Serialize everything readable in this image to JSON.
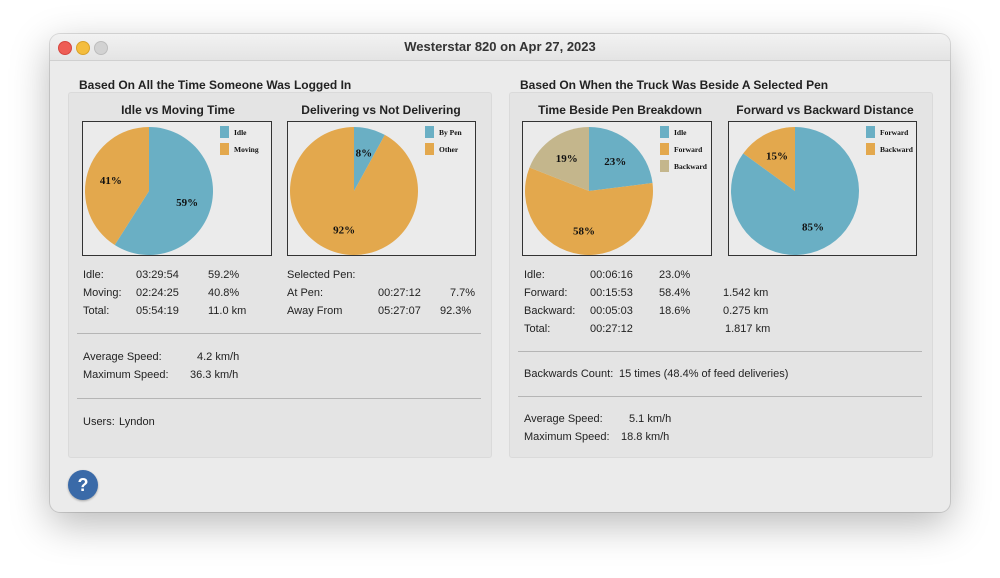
{
  "window": {
    "title": "Westerstar 820 on Apr 27, 2023"
  },
  "left_section": {
    "title": "Based On All the Time Someone Was Logged In",
    "charts": [
      {
        "title": "Idle vs Moving Time"
      },
      {
        "title": "Delivering vs Not Delivering"
      }
    ],
    "stats": {
      "idle_label": "Idle:",
      "idle_time": "03:29:54",
      "idle_pct": "59.2%",
      "moving_label": "Moving:",
      "moving_time": "02:24:25",
      "moving_pct": "40.8%",
      "total_label": "Total:",
      "total_time": "05:54:19",
      "total_dist": "11.0 km",
      "selected_pen_label": "Selected Pen:",
      "at_pen_label": "At Pen:",
      "at_pen_time": "00:27:12",
      "at_pen_pct": "7.7%",
      "away_label": "Away From",
      "away_time": "05:27:07",
      "away_pct": "92.3%",
      "avg_speed_label": "Average Speed:",
      "avg_speed_value": "4.2 km/h",
      "max_speed_label": "Maximum Speed:",
      "max_speed_value": "36.3 km/h",
      "users_label": "Users:",
      "users_value": "Lyndon"
    }
  },
  "right_section": {
    "title": "Based On When the Truck Was Beside A Selected Pen",
    "charts": [
      {
        "title": "Time Beside Pen Breakdown"
      },
      {
        "title": "Forward vs Backward Distance"
      }
    ],
    "stats": {
      "idle_label": "Idle:",
      "idle_time": "00:06:16",
      "idle_pct": "23.0%",
      "forward_label": "Forward:",
      "forward_time": "00:15:53",
      "forward_pct": "58.4%",
      "forward_dist": "1.542 km",
      "backward_label": "Backward:",
      "backward_time": "00:05:03",
      "backward_pct": "18.6%",
      "backward_dist": "0.275 km",
      "total_label": "Total:",
      "total_time": "00:27:12",
      "total_dist": "1.817 km",
      "backwards_count_label": "Backwards Count:",
      "backwards_count_value": "15 times (48.4% of feed deliveries)",
      "avg_speed_label": "Average Speed:",
      "avg_speed_value": "5.1 km/h",
      "max_speed_label": "Maximum Speed:",
      "max_speed_value": "18.8 km/h"
    }
  },
  "help_button": {
    "label": "?"
  },
  "colors": {
    "blue": "#6aafc4",
    "orange": "#e3a84d",
    "tan": "#c4b68c"
  },
  "chart_data": [
    {
      "type": "pie",
      "title": "Idle vs Moving Time",
      "categories": [
        "Idle",
        "Moving"
      ],
      "values": [
        59,
        41
      ],
      "labels": [
        "59%",
        "41%"
      ],
      "colors": [
        "#6aafc4",
        "#e3a84d"
      ],
      "legend": "top-right"
    },
    {
      "type": "pie",
      "title": "Delivering vs Not Delivering",
      "categories": [
        "By Pen",
        "Other"
      ],
      "values": [
        8,
        92
      ],
      "labels": [
        "8%",
        "92%"
      ],
      "colors": [
        "#6aafc4",
        "#e3a84d"
      ],
      "legend": "top-right"
    },
    {
      "type": "pie",
      "title": "Time Beside Pen Breakdown",
      "categories": [
        "Idle",
        "Forward",
        "Backward"
      ],
      "values": [
        23,
        58,
        19
      ],
      "labels": [
        "23%",
        "58%",
        "19%"
      ],
      "colors": [
        "#6aafc4",
        "#e3a84d",
        "#c4b68c"
      ],
      "legend": "top-right"
    },
    {
      "type": "pie",
      "title": "Forward vs Backward Distance",
      "categories": [
        "Forward",
        "Backward"
      ],
      "values": [
        85,
        15
      ],
      "labels": [
        "85%",
        "15%"
      ],
      "colors": [
        "#6aafc4",
        "#e3a84d"
      ],
      "legend": "top-right"
    }
  ]
}
